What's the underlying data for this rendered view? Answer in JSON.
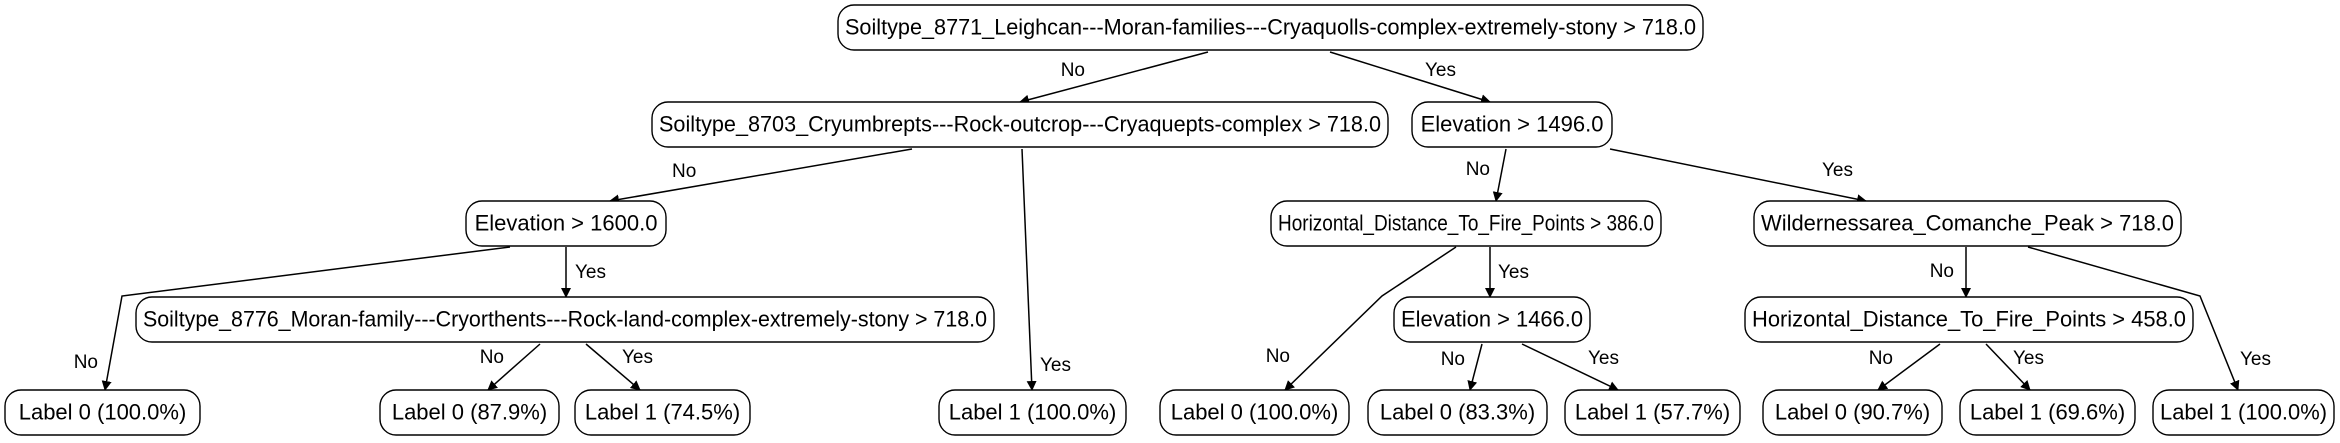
{
  "nodes": [
    {
      "id": "n0",
      "label": "Soiltype_8771_Leighcan---Moran-families---Cryaquolls-complex-extremely-stony > 718.0"
    },
    {
      "id": "n1",
      "label": "Soiltype_8703_Cryumbrepts---Rock-outcrop---Cryaquepts-complex > 718.0"
    },
    {
      "id": "n2",
      "label": "Elevation > 1496.0"
    },
    {
      "id": "n3",
      "label": "Elevation > 1600.0"
    },
    {
      "id": "n4",
      "label": "Horizontal_Distance_To_Fire_Points > 386.0"
    },
    {
      "id": "n5",
      "label": "Wildernessarea_Comanche_Peak > 718.0"
    },
    {
      "id": "n6",
      "label": "Soiltype_8776_Moran-family---Cryorthents---Rock-land-complex-extremely-stony > 718.0"
    },
    {
      "id": "n7",
      "label": "Elevation > 1466.0"
    },
    {
      "id": "n8",
      "label": "Horizontal_Distance_To_Fire_Points > 458.0"
    },
    {
      "id": "l0",
      "label": "Label 0 (100.0%)"
    },
    {
      "id": "l1",
      "label": "Label 0 (87.9%)"
    },
    {
      "id": "l2",
      "label": "Label 1 (74.5%)"
    },
    {
      "id": "l3",
      "label": "Label 1 (100.0%)"
    },
    {
      "id": "l4",
      "label": "Label 0 (100.0%)"
    },
    {
      "id": "l5",
      "label": "Label 0 (83.3%)"
    },
    {
      "id": "l6",
      "label": "Label 1 (57.7%)"
    },
    {
      "id": "l7",
      "label": "Label 0 (90.7%)"
    },
    {
      "id": "l8",
      "label": "Label 1 (69.6%)"
    },
    {
      "id": "l9",
      "label": "Label 1 (100.0%)"
    }
  ],
  "edges": [
    {
      "from": "n0",
      "to": "n1",
      "label": "No"
    },
    {
      "from": "n0",
      "to": "n2",
      "label": "Yes"
    },
    {
      "from": "n1",
      "to": "n3",
      "label": "No"
    },
    {
      "from": "n1",
      "to": "l3",
      "label": "Yes"
    },
    {
      "from": "n3",
      "to": "l0",
      "label": "No"
    },
    {
      "from": "n3",
      "to": "n6",
      "label": "Yes"
    },
    {
      "from": "n6",
      "to": "l1",
      "label": "No"
    },
    {
      "from": "n6",
      "to": "l2",
      "label": "Yes"
    },
    {
      "from": "n2",
      "to": "n4",
      "label": "No"
    },
    {
      "from": "n2",
      "to": "n5",
      "label": "Yes"
    },
    {
      "from": "n4",
      "to": "l4",
      "label": "No"
    },
    {
      "from": "n4",
      "to": "n7",
      "label": "Yes"
    },
    {
      "from": "n7",
      "to": "l5",
      "label": "No"
    },
    {
      "from": "n7",
      "to": "l6",
      "label": "Yes"
    },
    {
      "from": "n5",
      "to": "n8",
      "label": "No"
    },
    {
      "from": "n5",
      "to": "l9",
      "label": "Yes"
    },
    {
      "from": "n8",
      "to": "l7",
      "label": "No"
    },
    {
      "from": "n8",
      "to": "l8",
      "label": "Yes"
    }
  ]
}
